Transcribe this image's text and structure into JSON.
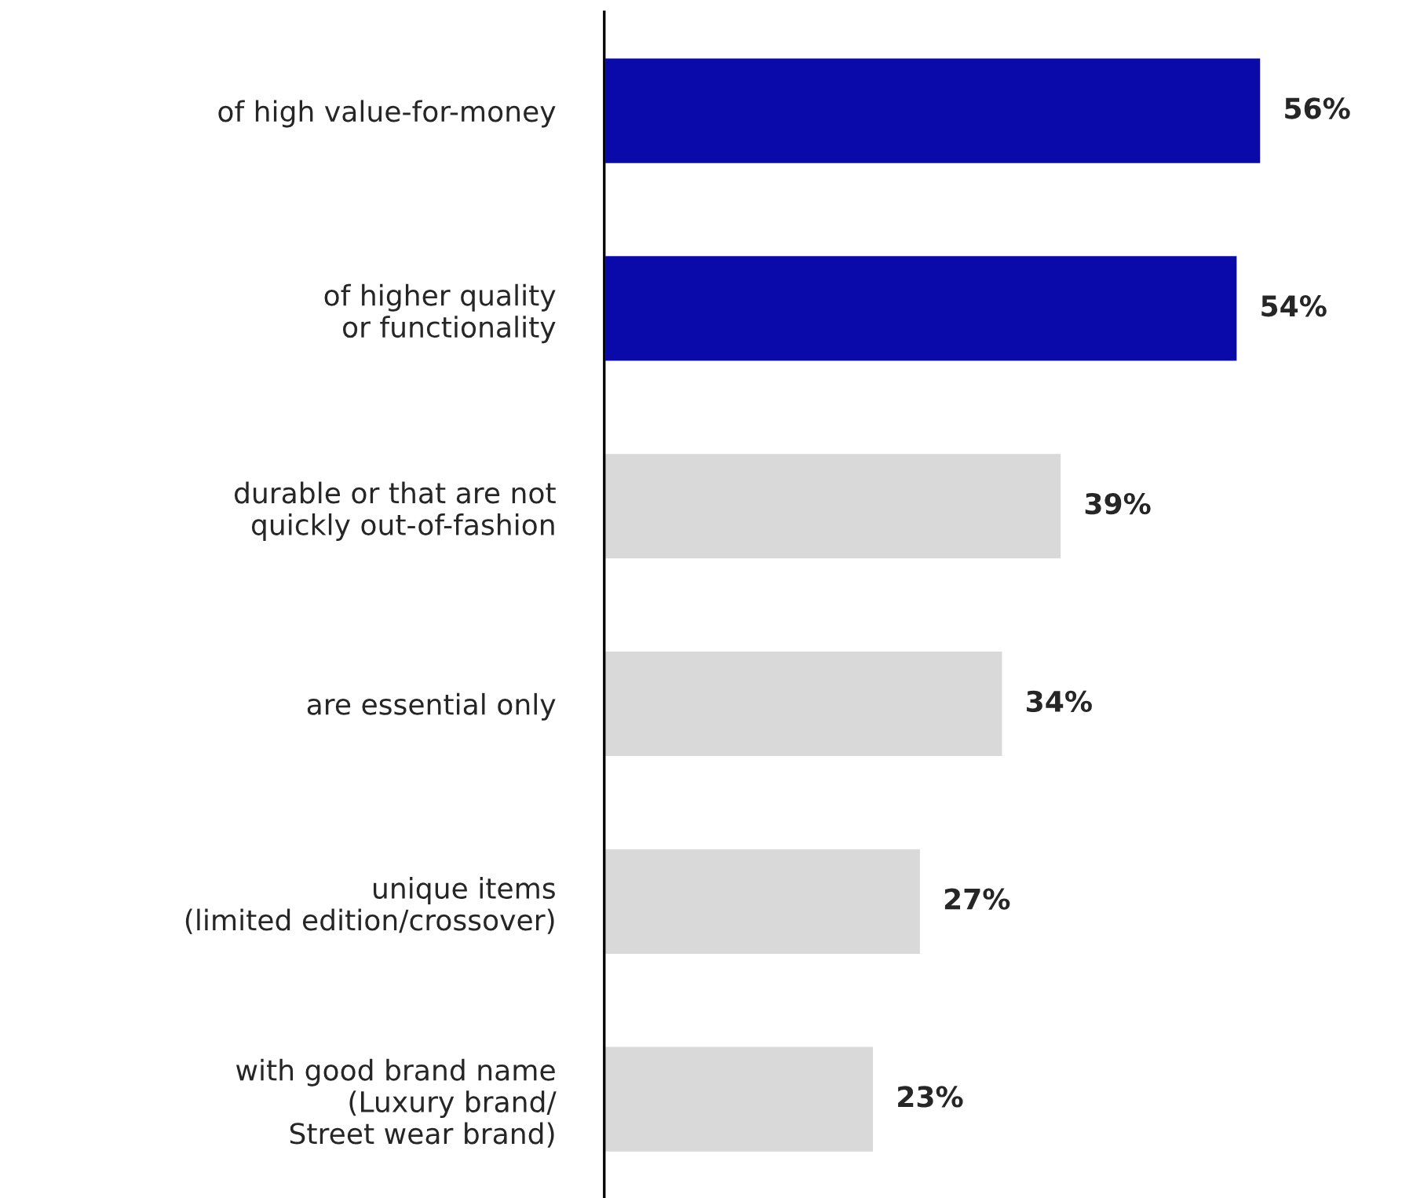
{
  "chart_data": {
    "type": "bar",
    "orientation": "horizontal",
    "categories": [
      "of high value-for-money",
      "of higher quality\nor functionality",
      "durable or that are not\nquickly out-of-fashion",
      "are essential only",
      "unique items\n(limited edition/crossover)",
      "with good brand name\n(Luxury brand/\nStreet wear brand)"
    ],
    "values": [
      56,
      54,
      39,
      34,
      27,
      23
    ],
    "colors": [
      "#0a0aaa",
      "#0a0aaa",
      "#d9d9d9",
      "#d9d9d9",
      "#d9d9d9",
      "#d9d9d9"
    ],
    "value_labels": [
      "56%",
      "54%",
      "39%",
      "34%",
      "27%",
      "23%"
    ],
    "tick_labels": "y",
    "grid": false,
    "legend": false
  }
}
